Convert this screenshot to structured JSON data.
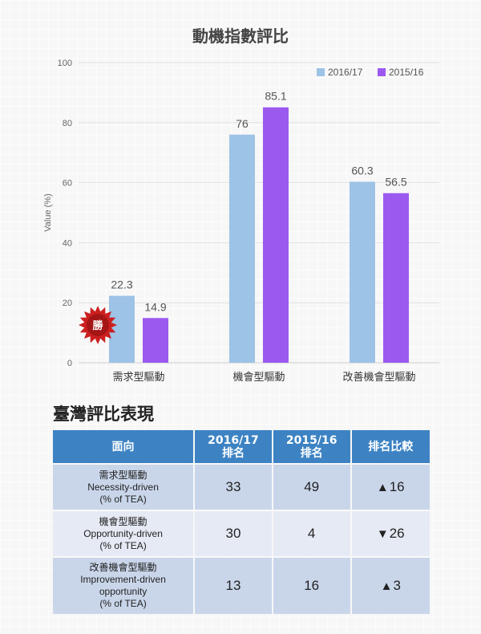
{
  "chart_data": {
    "type": "bar",
    "title": "動機指數評比",
    "ylabel": "Value (%)",
    "xlabel": "",
    "ylim": [
      0,
      100
    ],
    "yticks": [
      0,
      20,
      40,
      60,
      80,
      100
    ],
    "grid": true,
    "legend_position": "top-right",
    "categories": [
      "需求型驅動",
      "機會型驅動",
      "改善機會型驅動"
    ],
    "series": [
      {
        "name": "2016/17",
        "values": [
          22.3,
          76,
          60.3
        ],
        "color": "#9dc3e6"
      },
      {
        "name": "2015/16",
        "values": [
          14.9,
          85.1,
          56.5
        ],
        "color": "#9b59f0"
      }
    ],
    "annotations": [
      {
        "text": "勝",
        "category": "需求型驅動",
        "shape": "red-starburst-badge",
        "color": "#cc1f1f"
      }
    ]
  },
  "ranking_table": {
    "title": "臺灣評比表現",
    "headers": {
      "aspect": "面向",
      "rank_2016_line1": "2016/17",
      "rank_2016_line2": "排名",
      "rank_2015_line1": "2015/16",
      "rank_2015_line2": "排名",
      "compare": "排名比較"
    },
    "rows": [
      {
        "zh": "需求型驅動",
        "en": [
          "Necessity-driven",
          "(% of TEA)"
        ],
        "rank_2016": "33",
        "rank_2015": "49",
        "arrow": "▲",
        "change": "16"
      },
      {
        "zh": "機會型驅動",
        "en": [
          "Opportunity-driven",
          "(% of TEA)"
        ],
        "rank_2016": "30",
        "rank_2015": "4",
        "arrow": "▼",
        "change": "26"
      },
      {
        "zh": "改善機會型驅動",
        "en": [
          "Improvement-driven",
          "opportunity",
          "(% of TEA)"
        ],
        "rank_2016": "13",
        "rank_2015": "16",
        "arrow": "▲",
        "change": "3"
      }
    ]
  }
}
